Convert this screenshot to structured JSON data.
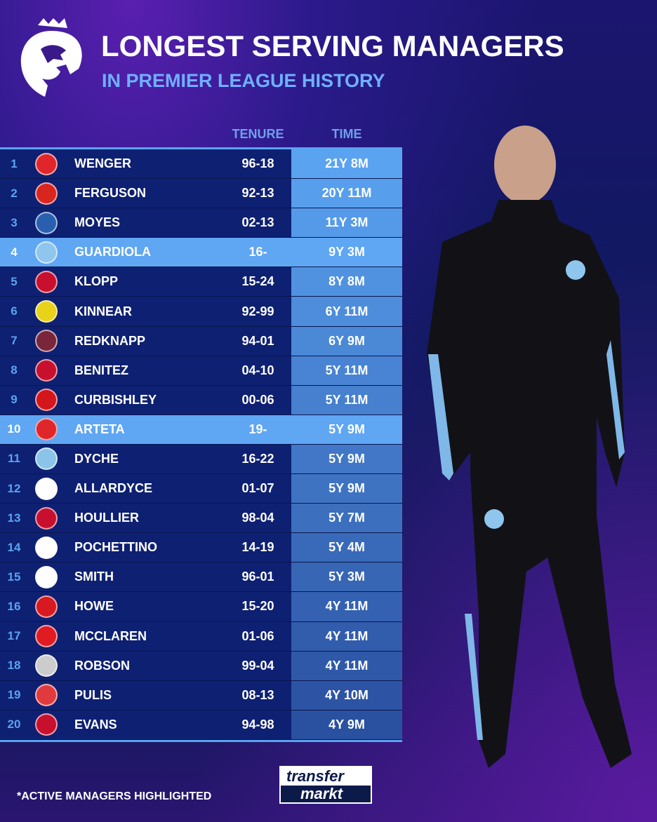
{
  "header": {
    "title": "LONGEST SERVING MANAGERS",
    "subtitle": "IN PREMIER LEAGUE HISTORY"
  },
  "columns": {
    "tenure": "TENURE",
    "time": "TIME"
  },
  "rows": [
    {
      "rank": "1",
      "name": "WENGER",
      "tenure": "96-18",
      "time": "21Y 8M",
      "club": "arsenal-badge",
      "color": "#e0262b",
      "active": false
    },
    {
      "rank": "2",
      "name": "FERGUSON",
      "tenure": "92-13",
      "time": "20Y 11M",
      "club": "man-united-badge",
      "color": "#d8261f",
      "active": false
    },
    {
      "rank": "3",
      "name": "MOYES",
      "tenure": "02-13",
      "time": "11Y 3M",
      "club": "everton-badge",
      "color": "#2a5fb0",
      "active": false
    },
    {
      "rank": "4",
      "name": "GUARDIOLA",
      "tenure": "16-",
      "time": "9Y 3M",
      "club": "man-city-badge",
      "color": "#8ec6ee",
      "active": true
    },
    {
      "rank": "5",
      "name": "KLOPP",
      "tenure": "15-24",
      "time": "8Y 8M",
      "club": "liverpool-badge",
      "color": "#c8102e",
      "active": false
    },
    {
      "rank": "6",
      "name": "KINNEAR",
      "tenure": "92-99",
      "time": "6Y 11M",
      "club": "wimbledon-badge",
      "color": "#e8d21a",
      "active": false
    },
    {
      "rank": "7",
      "name": "REDKNAPP",
      "tenure": "94-01",
      "time": "6Y 9M",
      "club": "west-ham-badge",
      "color": "#7a263a",
      "active": false
    },
    {
      "rank": "8",
      "name": "BENITEZ",
      "tenure": "04-10",
      "time": "5Y 11M",
      "club": "liverpool-badge",
      "color": "#c8102e",
      "active": false
    },
    {
      "rank": "9",
      "name": "CURBISHLEY",
      "tenure": "00-06",
      "time": "5Y 11M",
      "club": "charlton-badge",
      "color": "#d4161c",
      "active": false
    },
    {
      "rank": "10",
      "name": "ARTETA",
      "tenure": "19-",
      "time": "5Y 9M",
      "club": "arsenal-badge",
      "color": "#e0262b",
      "active": true
    },
    {
      "rank": "11",
      "name": "DYCHE",
      "tenure": "16-22",
      "time": "5Y 9M",
      "club": "burnley-badge",
      "color": "#8ac4e8",
      "active": false
    },
    {
      "rank": "12",
      "name": "ALLARDYCE",
      "tenure": "01-07",
      "time": "5Y 9M",
      "club": "bolton-badge",
      "color": "#ffffff",
      "active": false
    },
    {
      "rank": "13",
      "name": "HOULLIER",
      "tenure": "98-04",
      "time": "5Y 7M",
      "club": "liverpool-badge",
      "color": "#c8102e",
      "active": false
    },
    {
      "rank": "14",
      "name": "POCHETTINO",
      "tenure": "14-19",
      "time": "5Y 4M",
      "club": "tottenham-badge",
      "color": "#ffffff",
      "active": false
    },
    {
      "rank": "15",
      "name": "SMITH",
      "tenure": "96-01",
      "time": "5Y 3M",
      "club": "derby-badge",
      "color": "#ffffff",
      "active": false
    },
    {
      "rank": "16",
      "name": "HOWE",
      "tenure": "15-20",
      "time": "4Y 11M",
      "club": "bournemouth-badge",
      "color": "#d71920",
      "active": false
    },
    {
      "rank": "17",
      "name": "MCCLAREN",
      "tenure": "01-06",
      "time": "4Y 11M",
      "club": "middlesbrough-badge",
      "color": "#e11b22",
      "active": false
    },
    {
      "rank": "18",
      "name": "ROBSON",
      "tenure": "99-04",
      "time": "4Y 11M",
      "club": "newcastle-badge",
      "color": "#cccccc",
      "active": false
    },
    {
      "rank": "19",
      "name": "PULIS",
      "tenure": "08-13",
      "time": "4Y 10M",
      "club": "stoke-badge",
      "color": "#e03a3e",
      "active": false
    },
    {
      "rank": "20",
      "name": "EVANS",
      "tenure": "94-98",
      "time": "4Y 9M",
      "club": "liverpool-badge",
      "color": "#c8102e",
      "active": false
    }
  ],
  "footer": {
    "note": "*ACTIVE MANAGERS HIGHLIGHTED",
    "brand_line1": "transfer",
    "brand_line2": "markt"
  },
  "colors": {
    "accent": "#5aa3f0",
    "highlight": "#5fa6f3",
    "row": "#0e2072",
    "subtitle": "#6fb0ff"
  }
}
